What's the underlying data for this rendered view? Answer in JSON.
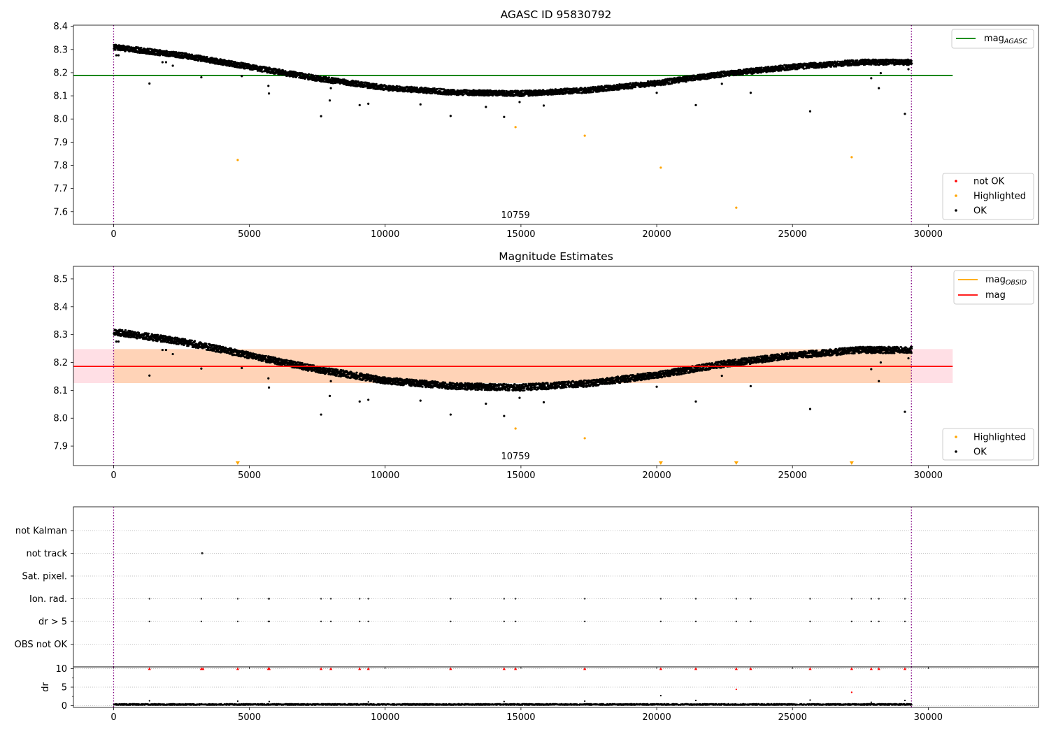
{
  "chart_data": [
    {
      "type": "scatter",
      "title": "AGASC ID 95830792",
      "xlim": [
        -1480,
        34060
      ],
      "ylim": [
        7.545,
        8.405
      ],
      "xticks": [
        0,
        5000,
        10000,
        15000,
        20000,
        25000,
        30000
      ],
      "yticks": [
        7.6,
        7.7,
        7.8,
        7.9,
        8.0,
        8.1,
        8.2,
        8.3,
        8.4
      ],
      "obsid_label": "10759",
      "obs_bounds": [
        0,
        29380
      ],
      "reference_line": {
        "name": "mag",
        "name_sub": "AGASC",
        "value": 8.188,
        "x_range": [
          -1480,
          30900
        ],
        "color": "#008000"
      },
      "baseline_trend": [
        [
          0,
          8.31
        ],
        [
          2500,
          8.275
        ],
        [
          5000,
          8.225
        ],
        [
          7500,
          8.175
        ],
        [
          10000,
          8.135
        ],
        [
          12500,
          8.115
        ],
        [
          15000,
          8.11
        ],
        [
          17500,
          8.125
        ],
        [
          20000,
          8.155
        ],
        [
          22500,
          8.195
        ],
        [
          25000,
          8.225
        ],
        [
          27500,
          8.245
        ],
        [
          29380,
          8.245
        ]
      ],
      "series": [
        {
          "name": "not OK",
          "color": "#ff0000",
          "points": []
        },
        {
          "name": "Highlighted",
          "color": "#ffa500",
          "points": [
            [
              4570,
              7.823
            ],
            [
              14800,
              7.965
            ],
            [
              17350,
              7.928
            ],
            [
              20150,
              7.79
            ],
            [
              22930,
              7.617
            ],
            [
              27180,
              7.835
            ]
          ]
        },
        {
          "name": "OK",
          "color": "#000000",
          "points": [
            [
              100,
              8.275
            ],
            [
              180,
              8.275
            ],
            [
              1320,
              8.153
            ],
            [
              1800,
              8.245
            ],
            [
              1930,
              8.245
            ],
            [
              2180,
              8.23
            ],
            [
              3230,
              8.18
            ],
            [
              4720,
              8.185
            ],
            [
              5700,
              8.143
            ],
            [
              5720,
              8.11
            ],
            [
              7640,
              8.012
            ],
            [
              7960,
              8.08
            ],
            [
              8000,
              8.133
            ],
            [
              9060,
              8.06
            ],
            [
              9380,
              8.066
            ],
            [
              11300,
              8.063
            ],
            [
              12410,
              8.013
            ],
            [
              13710,
              8.052
            ],
            [
              14380,
              8.009
            ],
            [
              14950,
              8.073
            ],
            [
              15840,
              8.058
            ],
            [
              20000,
              8.113
            ],
            [
              21440,
              8.06
            ],
            [
              22400,
              8.152
            ],
            [
              23460,
              8.113
            ],
            [
              25650,
              8.033
            ],
            [
              27900,
              8.176
            ],
            [
              28180,
              8.133
            ],
            [
              28250,
              8.198
            ],
            [
              29140,
              8.022
            ],
            [
              29270,
              8.215
            ]
          ]
        }
      ],
      "legend": {
        "placement": "lower-right",
        "entries": [
          "not OK",
          "Highlighted",
          "OK"
        ]
      },
      "legend_line": {
        "placement": "upper-right"
      }
    },
    {
      "type": "scatter",
      "title": "Magnitude Estimates",
      "xlim": [
        -1480,
        34060
      ],
      "ylim": [
        7.83,
        8.545
      ],
      "xticks": [
        0,
        5000,
        10000,
        15000,
        20000,
        25000,
        30000
      ],
      "yticks": [
        7.9,
        8.0,
        8.1,
        8.2,
        8.3,
        8.4,
        8.5
      ],
      "obsid_label": "10759",
      "obs_bounds": [
        0,
        29380
      ],
      "bands": [
        {
          "y0": 8.126,
          "y1": 8.248,
          "x_range": [
            -1480,
            30900
          ],
          "color": "#ffc0cb",
          "opacity": 0.5
        },
        {
          "y0": 8.126,
          "y1": 8.248,
          "x_range": [
            0,
            29380
          ],
          "color": "#ffa500",
          "opacity": 0.2
        }
      ],
      "lines": [
        {
          "name": "mag",
          "name_sub": "OBSID",
          "value": 8.186,
          "x_range": [
            0,
            29380
          ],
          "color": "#ffa500"
        },
        {
          "name": "mag",
          "value": 8.186,
          "x_range": [
            -1480,
            30900
          ],
          "color": "#ff0000"
        }
      ],
      "offscale_markers": {
        "color": "#ffa500",
        "x": [
          4570,
          20150,
          22930,
          27180
        ]
      },
      "baseline_trend": [
        [
          0,
          8.31
        ],
        [
          2500,
          8.275
        ],
        [
          5000,
          8.225
        ],
        [
          7500,
          8.175
        ],
        [
          10000,
          8.135
        ],
        [
          12500,
          8.115
        ],
        [
          15000,
          8.11
        ],
        [
          17500,
          8.125
        ],
        [
          20000,
          8.155
        ],
        [
          22500,
          8.195
        ],
        [
          25000,
          8.225
        ],
        [
          27500,
          8.245
        ],
        [
          29380,
          8.245
        ]
      ],
      "series": [
        {
          "name": "Highlighted",
          "color": "#ffa500",
          "points": [
            [
              14800,
              7.963
            ],
            [
              17350,
              7.928
            ]
          ]
        },
        {
          "name": "OK",
          "color": "#000000",
          "points": [
            [
              100,
              8.275
            ],
            [
              180,
              8.275
            ],
            [
              1320,
              8.153
            ],
            [
              1800,
              8.245
            ],
            [
              1930,
              8.245
            ],
            [
              2180,
              8.23
            ],
            [
              3230,
              8.178
            ],
            [
              4720,
              8.18
            ],
            [
              5700,
              8.143
            ],
            [
              5720,
              8.11
            ],
            [
              7640,
              8.013
            ],
            [
              7960,
              8.08
            ],
            [
              8000,
              8.133
            ],
            [
              9060,
              8.06
            ],
            [
              9380,
              8.066
            ],
            [
              11300,
              8.063
            ],
            [
              12410,
              8.013
            ],
            [
              13710,
              8.052
            ],
            [
              14380,
              8.008
            ],
            [
              14950,
              8.073
            ],
            [
              15840,
              8.057
            ],
            [
              20000,
              8.113
            ],
            [
              21440,
              8.06
            ],
            [
              22400,
              8.152
            ],
            [
              23460,
              8.115
            ],
            [
              25650,
              8.033
            ],
            [
              27900,
              8.176
            ],
            [
              28180,
              8.133
            ],
            [
              28250,
              8.2
            ],
            [
              29140,
              8.023
            ],
            [
              29270,
              8.215
            ]
          ]
        }
      ],
      "legend": {
        "placement": "lower-right",
        "entries": [
          "Highlighted",
          "OK"
        ]
      },
      "legend_line": {
        "placement": "upper-right"
      }
    },
    {
      "type": "scatter",
      "title": "",
      "xlim": [
        -1480,
        34060
      ],
      "xticks": [
        0,
        5000,
        10000,
        15000,
        20000,
        25000,
        30000
      ],
      "flag_rows": [
        "not Kalman",
        "not track",
        "Sat. pixel.",
        "Ion. rad.",
        "dr > 5",
        "OBS not OK"
      ],
      "obs_bounds": [
        0,
        29380
      ],
      "flags": {
        "not track": [
          3260
        ],
        "Ion. rad.": [
          1320,
          3230,
          4570,
          5700,
          5730,
          7640,
          8000,
          9060,
          9380,
          12410,
          14380,
          14800,
          17350,
          20150,
          21440,
          22930,
          23460,
          25650,
          27180,
          27900,
          28180,
          29140
        ],
        "dr > 5": [
          1320,
          3230,
          4570,
          5700,
          5730,
          7640,
          8000,
          9060,
          9380,
          12410,
          14380,
          14800,
          17350,
          20150,
          21440,
          22930,
          23460,
          25650,
          27180,
          27900,
          28180,
          29140
        ]
      },
      "dr": {
        "ylabel": "dr",
        "yticks": [
          0,
          5,
          10
        ],
        "ylim": [
          -0.5,
          10.5
        ],
        "capped_markers": {
          "color": "#ff0000",
          "value": 10,
          "x": [
            1320,
            3230,
            3290,
            4570,
            5700,
            5730,
            7640,
            8000,
            9060,
            9380,
            12410,
            14380,
            14800,
            17350,
            20150,
            21440,
            22930,
            23460,
            25650,
            27180,
            27900,
            28180,
            29140
          ]
        },
        "points": [
          [
            1320,
            1.3
          ],
          [
            4570,
            1.2
          ],
          [
            5730,
            1.1
          ],
          [
            9380,
            1.0
          ],
          [
            14380,
            1.1
          ],
          [
            17350,
            1.2
          ],
          [
            20150,
            2.7
          ],
          [
            21440,
            1.4
          ],
          [
            22930,
            4.4
          ],
          [
            25650,
            1.5
          ],
          [
            27180,
            3.6
          ],
          [
            27900,
            0.9
          ],
          [
            29140,
            1.4
          ]
        ],
        "red_points": [
          [
            22930,
            4.4
          ],
          [
            27180,
            3.6
          ]
        ]
      }
    }
  ]
}
